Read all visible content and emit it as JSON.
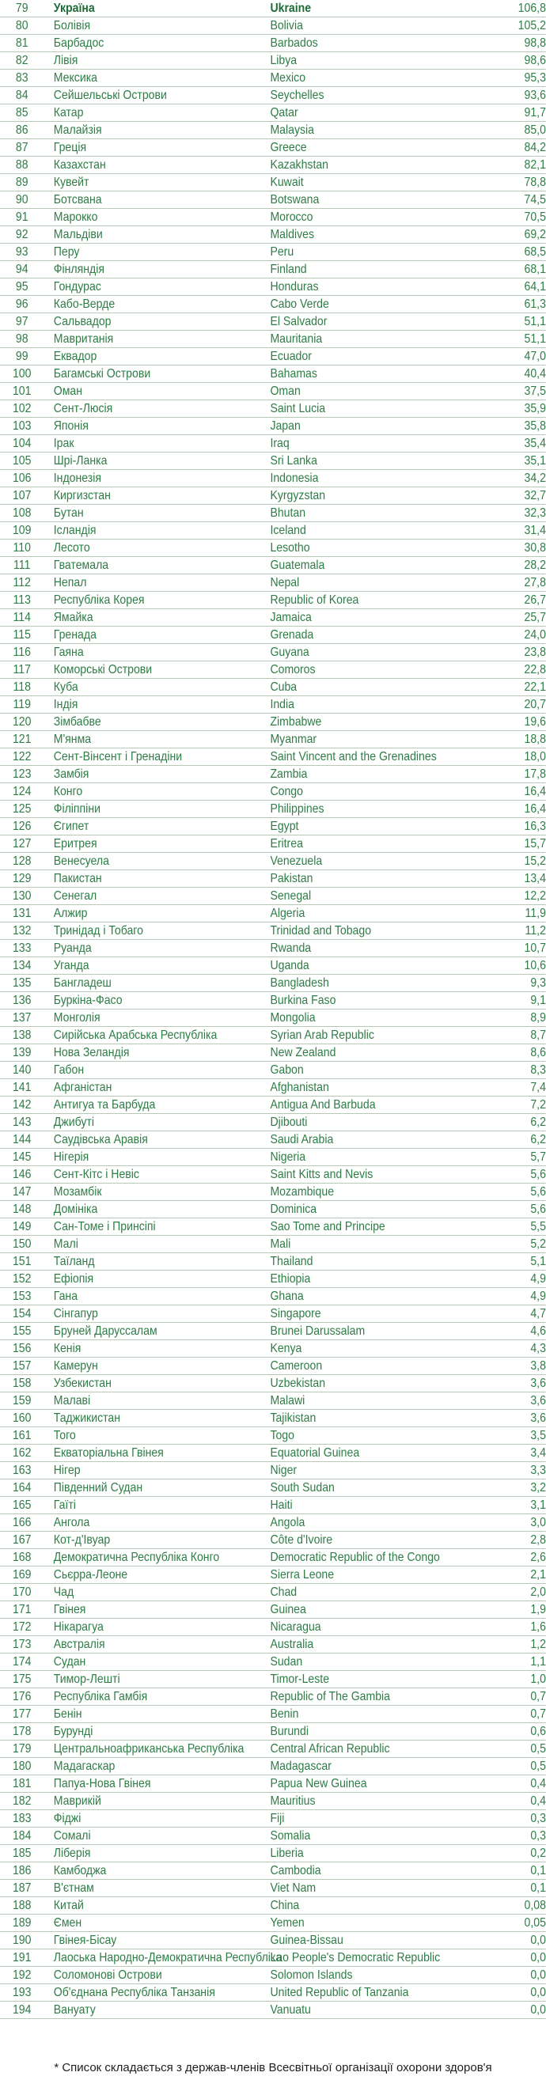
{
  "rows": [
    {
      "rank": "79",
      "ua": "Україна",
      "en": "Ukraine",
      "value": "106,8"
    },
    {
      "rank": "80",
      "ua": "Болівія",
      "en": "Bolivia",
      "value": "105,2"
    },
    {
      "rank": "81",
      "ua": "Барбадос",
      "en": "Barbados",
      "value": "98,8"
    },
    {
      "rank": "82",
      "ua": "Лівія",
      "en": "Libya",
      "value": "98,6"
    },
    {
      "rank": "83",
      "ua": "Мексика",
      "en": "Mexico",
      "value": "95,3"
    },
    {
      "rank": "84",
      "ua": "Сейшельські Острови",
      "en": "Seychelles",
      "value": "93,6"
    },
    {
      "rank": "85",
      "ua": "Катар",
      "en": "Qatar",
      "value": "91,7"
    },
    {
      "rank": "86",
      "ua": "Малайзія",
      "en": "Malaysia",
      "value": "85,0"
    },
    {
      "rank": "87",
      "ua": "Греція",
      "en": "Greece",
      "value": "84,2"
    },
    {
      "rank": "88",
      "ua": "Казахстан",
      "en": "Kazakhstan",
      "value": "82,1"
    },
    {
      "rank": "89",
      "ua": "Кувейт",
      "en": "Kuwait",
      "value": "78,8"
    },
    {
      "rank": "90",
      "ua": "Ботсвана",
      "en": "Botswana",
      "value": "74,5"
    },
    {
      "rank": "91",
      "ua": "Марокко",
      "en": "Morocco",
      "value": "70,5"
    },
    {
      "rank": "92",
      "ua": "Мальдіви",
      "en": "Maldives",
      "value": "69,2"
    },
    {
      "rank": "93",
      "ua": "Перу",
      "en": "Peru",
      "value": "68,5"
    },
    {
      "rank": "94",
      "ua": "Фінляндія",
      "en": "Finland",
      "value": "68,1"
    },
    {
      "rank": "95",
      "ua": "Гондурас",
      "en": "Honduras",
      "value": "64,1"
    },
    {
      "rank": "96",
      "ua": "Кабо-Верде",
      "en": "Cabo Verde",
      "value": "61,3"
    },
    {
      "rank": "97",
      "ua": "Сальвадор",
      "en": "El Salvador",
      "value": "51,1"
    },
    {
      "rank": "98",
      "ua": "Мавританія",
      "en": "Mauritania",
      "value": "51,1"
    },
    {
      "rank": "99",
      "ua": "Еквадор",
      "en": "Ecuador",
      "value": "47,0"
    },
    {
      "rank": "100",
      "ua": "Багамські Острови",
      "en": "Bahamas",
      "value": "40,4"
    },
    {
      "rank": "101",
      "ua": "Оман",
      "en": "Oman",
      "value": "37,5"
    },
    {
      "rank": "102",
      "ua": "Сент-Люсія",
      "en": "Saint Lucia",
      "value": "35,9"
    },
    {
      "rank": "103",
      "ua": "Японія",
      "en": "Japan",
      "value": "35,8"
    },
    {
      "rank": "104",
      "ua": "Ірак",
      "en": "Iraq",
      "value": "35,4"
    },
    {
      "rank": "105",
      "ua": "Шрі-Ланка",
      "en": "Sri Lanka",
      "value": "35,1"
    },
    {
      "rank": "106",
      "ua": "Індонезія",
      "en": "Indonesia",
      "value": "34,2"
    },
    {
      "rank": "107",
      "ua": "Киргизстан",
      "en": "Kyrgyzstan",
      "value": "32,7"
    },
    {
      "rank": "108",
      "ua": "Бутан",
      "en": "Bhutan",
      "value": "32,3"
    },
    {
      "rank": "109",
      "ua": "Ісландія",
      "en": "Iceland",
      "value": "31,4"
    },
    {
      "rank": "110",
      "ua": "Лесото",
      "en": "Lesotho",
      "value": "30,8"
    },
    {
      "rank": "111",
      "ua": "Гватемала",
      "en": "Guatemala",
      "value": "28,2"
    },
    {
      "rank": "112",
      "ua": "Непал",
      "en": "Nepal",
      "value": "27,8"
    },
    {
      "rank": "113",
      "ua": "Республіка Корея",
      "en": "Republic of Korea",
      "value": "26,7"
    },
    {
      "rank": "114",
      "ua": "Ямайка",
      "en": "Jamaica",
      "value": "25,7"
    },
    {
      "rank": "115",
      "ua": "Гренада",
      "en": "Grenada",
      "value": "24,0"
    },
    {
      "rank": "116",
      "ua": "Гаяна",
      "en": "Guyana",
      "value": "23,8"
    },
    {
      "rank": "117",
      "ua": "Коморські Острови",
      "en": "Comoros",
      "value": "22,8"
    },
    {
      "rank": "118",
      "ua": "Куба",
      "en": "Cuba",
      "value": "22,1"
    },
    {
      "rank": "119",
      "ua": "Індія",
      "en": "India",
      "value": "20,7"
    },
    {
      "rank": "120",
      "ua": "Зімбабве",
      "en": "Zimbabwe",
      "value": "19,6"
    },
    {
      "rank": "121",
      "ua": "М'янма",
      "en": "Myanmar",
      "value": "18,8"
    },
    {
      "rank": "122",
      "ua": "Сент-Вінсент і Гренадіни",
      "en": "Saint Vincent and the Grenadines",
      "value": "18,0"
    },
    {
      "rank": "123",
      "ua": "Замбія",
      "en": "Zambia",
      "value": "17,8"
    },
    {
      "rank": "124",
      "ua": "Конго",
      "en": "Congo",
      "value": "16,4"
    },
    {
      "rank": "125",
      "ua": "Філіппіни",
      "en": "Philippines",
      "value": "16,4"
    },
    {
      "rank": "126",
      "ua": "Єгипет",
      "en": "Egypt",
      "value": "16,3"
    },
    {
      "rank": "127",
      "ua": "Еритрея",
      "en": "Eritrea",
      "value": "15,7"
    },
    {
      "rank": "128",
      "ua": "Венесуела",
      "en": "Venezuela",
      "value": "15,2"
    },
    {
      "rank": "129",
      "ua": "Пакистан",
      "en": "Pakistan",
      "value": "13,4"
    },
    {
      "rank": "130",
      "ua": "Сенегал",
      "en": "Senegal",
      "value": "12,2"
    },
    {
      "rank": "131",
      "ua": "Алжир",
      "en": "Algeria",
      "value": "11,9"
    },
    {
      "rank": "132",
      "ua": "Тринідад і Тобаго",
      "en": "Trinidad and Tobago",
      "value": "11,2"
    },
    {
      "rank": "133",
      "ua": "Руанда",
      "en": "Rwanda",
      "value": "10,7"
    },
    {
      "rank": "134",
      "ua": "Уганда",
      "en": "Uganda",
      "value": "10,6"
    },
    {
      "rank": "135",
      "ua": "Бангладеш",
      "en": "Bangladesh",
      "value": "9,3"
    },
    {
      "rank": "136",
      "ua": "Буркіна-Фасо",
      "en": "Burkina Faso",
      "value": "9,1"
    },
    {
      "rank": "137",
      "ua": "Монголія",
      "en": "Mongolia",
      "value": "8,9"
    },
    {
      "rank": "138",
      "ua": "Сирійська Арабська Республіка",
      "en": "Syrian Arab Republic",
      "value": "8,7"
    },
    {
      "rank": "139",
      "ua": "Нова Зеландія",
      "en": "New Zealand",
      "value": "8,6"
    },
    {
      "rank": "140",
      "ua": "Габон",
      "en": "Gabon",
      "value": "8,3"
    },
    {
      "rank": "141",
      "ua": "Афганістан",
      "en": "Afghanistan",
      "value": "7,4"
    },
    {
      "rank": "142",
      "ua": "Антигуа та Барбуда",
      "en": "Antigua And Barbuda",
      "value": "7,2"
    },
    {
      "rank": "143",
      "ua": "Джибуті",
      "en": "Djibouti",
      "value": "6,2"
    },
    {
      "rank": "144",
      "ua": "Саудівська Аравія",
      "en": "Saudi Arabia",
      "value": "6,2"
    },
    {
      "rank": "145",
      "ua": "Нігерія",
      "en": "Nigeria",
      "value": "5,7"
    },
    {
      "rank": "146",
      "ua": "Сент-Кітс і Невіс",
      "en": "Saint Kitts and Nevis",
      "value": "5,6"
    },
    {
      "rank": "147",
      "ua": "Мозамбік",
      "en": "Mozambique",
      "value": "5,6"
    },
    {
      "rank": "148",
      "ua": "Домініка",
      "en": "Dominica",
      "value": "5,6"
    },
    {
      "rank": "149",
      "ua": "Сан-Томе і Принсіпі",
      "en": "Sao Tome and Principe",
      "value": "5,5"
    },
    {
      "rank": "150",
      "ua": "Малі",
      "en": "Mali",
      "value": "5,2"
    },
    {
      "rank": "151",
      "ua": "Таїланд",
      "en": "Thailand",
      "value": "5,1"
    },
    {
      "rank": "152",
      "ua": "Ефіопія",
      "en": "Ethiopia",
      "value": "4,9"
    },
    {
      "rank": "153",
      "ua": "Гана",
      "en": "Ghana",
      "value": "4,9"
    },
    {
      "rank": "154",
      "ua": "Сінгапур",
      "en": "Singapore",
      "value": "4,7"
    },
    {
      "rank": "155",
      "ua": "Бруней Даруссалам",
      "en": "Brunei Darussalam",
      "value": "4,6"
    },
    {
      "rank": "156",
      "ua": "Кенія",
      "en": "Kenya",
      "value": "4,3"
    },
    {
      "rank": "157",
      "ua": "Камерун",
      "en": "Cameroon",
      "value": "3,8"
    },
    {
      "rank": "158",
      "ua": "Узбекистан",
      "en": "Uzbekistan",
      "value": "3,6"
    },
    {
      "rank": "159",
      "ua": "Малаві",
      "en": "Malawi",
      "value": "3,6"
    },
    {
      "rank": "160",
      "ua": "Таджикистан",
      "en": "Tajikistan",
      "value": "3,6"
    },
    {
      "rank": "161",
      "ua": "Того",
      "en": "Togo",
      "value": "3,5"
    },
    {
      "rank": "162",
      "ua": "Екваторіальна Гвінея",
      "en": "Equatorial Guinea",
      "value": "3,4"
    },
    {
      "rank": "163",
      "ua": "Нігер",
      "en": "Niger",
      "value": "3,3"
    },
    {
      "rank": "164",
      "ua": "Південний Судан",
      "en": "South Sudan",
      "value": "3,2"
    },
    {
      "rank": "165",
      "ua": "Гаїті",
      "en": "Haiti",
      "value": "3,1"
    },
    {
      "rank": "166",
      "ua": "Ангола",
      "en": "Angola",
      "value": "3,0"
    },
    {
      "rank": "167",
      "ua": "Кот-д'Івуар",
      "en": "Côte d'Ivoire",
      "value": "2,8"
    },
    {
      "rank": "168",
      "ua": "Демократична Республіка Конго",
      "en": "Democratic Republic of the Congo",
      "value": "2,6"
    },
    {
      "rank": "169",
      "ua": "Сьєрра-Леоне",
      "en": "Sierra Leone",
      "value": "2,1"
    },
    {
      "rank": "170",
      "ua": "Чад",
      "en": "Chad",
      "value": "2,0"
    },
    {
      "rank": "171",
      "ua": "Гвінея",
      "en": "Guinea",
      "value": "1,9"
    },
    {
      "rank": "172",
      "ua": "Нікарагуа",
      "en": "Nicaragua",
      "value": "1,6"
    },
    {
      "rank": "173",
      "ua": "Австралія",
      "en": "Australia",
      "value": "1,2"
    },
    {
      "rank": "174",
      "ua": "Судан",
      "en": "Sudan",
      "value": "1,1"
    },
    {
      "rank": "175",
      "ua": "Тимор-Лешті",
      "en": "Timor-Leste",
      "value": "1,0"
    },
    {
      "rank": "176",
      "ua": "Республіка Гамбія",
      "en": "Republic of The Gambia",
      "value": "0,7"
    },
    {
      "rank": "177",
      "ua": "Бенін",
      "en": "Benin",
      "value": "0,7"
    },
    {
      "rank": "178",
      "ua": "Бурунді",
      "en": "Burundi",
      "value": "0,6"
    },
    {
      "rank": "179",
      "ua": "Центральноафриканська Республіка",
      "en": "Central African Republic",
      "value": "0,5"
    },
    {
      "rank": "180",
      "ua": "Мадагаскар",
      "en": "Madagascar",
      "value": "0,5"
    },
    {
      "rank": "181",
      "ua": "Папуа-Нова Гвінея",
      "en": "Papua New Guinea",
      "value": "0,4"
    },
    {
      "rank": "182",
      "ua": "Маврикій",
      "en": "Mauritius",
      "value": "0,4"
    },
    {
      "rank": "183",
      "ua": "Фіджі",
      "en": "Fiji",
      "value": "0,3"
    },
    {
      "rank": "184",
      "ua": "Сомалі",
      "en": "Somalia",
      "value": "0,3"
    },
    {
      "rank": "185",
      "ua": "Ліберія",
      "en": "Liberia",
      "value": "0,2"
    },
    {
      "rank": "186",
      "ua": "Камбоджа",
      "en": "Cambodia",
      "value": "0,1"
    },
    {
      "rank": "187",
      "ua": "В'єтнам",
      "en": "Viet Nam",
      "value": "0,1"
    },
    {
      "rank": "188",
      "ua": "Китай",
      "en": "China",
      "value": "0,08"
    },
    {
      "rank": "189",
      "ua": "Ємен",
      "en": "Yemen",
      "value": "0,05"
    },
    {
      "rank": "190",
      "ua": "Гвінея-Бісау",
      "en": "Guinea-Bissau",
      "value": "0,0"
    },
    {
      "rank": "191",
      "ua": "Лаоська Народно-Демократична Республіка",
      "en": "Lao People's Democratic Republic",
      "value": "0,0"
    },
    {
      "rank": "192",
      "ua": "Соломонові Острови",
      "en": "Solomon Islands",
      "value": "0,0"
    },
    {
      "rank": "193",
      "ua": "Об'єднана Республіка Танзанія",
      "en": "United Republic of Tanzania",
      "value": "0,0"
    },
    {
      "rank": "194",
      "ua": "Вануату",
      "en": "Vanuatu",
      "value": "0,0"
    }
  ],
  "footnote": "* Список складається з держав-членів Всесвітньої організації охорони здоров'я"
}
